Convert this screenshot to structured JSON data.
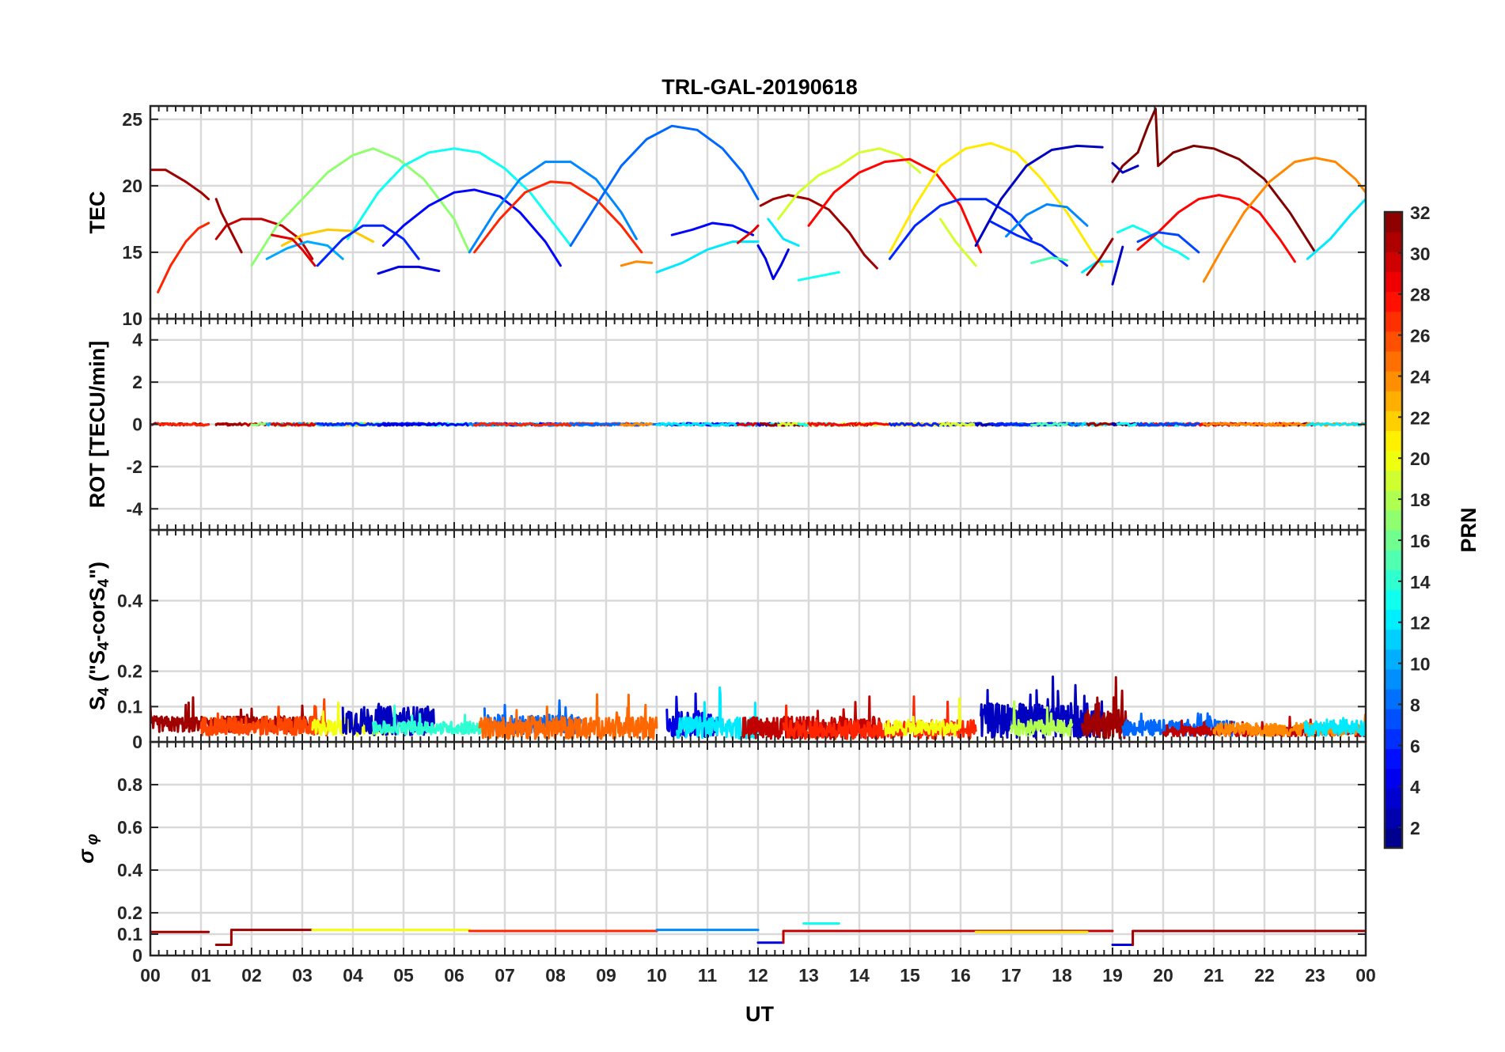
{
  "title": "TRL-GAL-20190618",
  "xlabel": "UT",
  "x_tick_labels": [
    "00",
    "01",
    "02",
    "03",
    "04",
    "05",
    "06",
    "07",
    "08",
    "09",
    "10",
    "11",
    "12",
    "13",
    "14",
    "15",
    "16",
    "17",
    "18",
    "19",
    "20",
    "21",
    "22",
    "23",
    "00"
  ],
  "colorbar": {
    "label": "PRN",
    "range": [
      1,
      32
    ],
    "tick_values": [
      2,
      4,
      6,
      8,
      10,
      12,
      14,
      16,
      18,
      20,
      22,
      24,
      26,
      28,
      30,
      32
    ],
    "tick_labels": [
      "2",
      "4",
      "6",
      "8",
      "10",
      "12",
      "14",
      "16",
      "18",
      "20",
      "22",
      "24",
      "26",
      "28",
      "30",
      "32"
    ],
    "colormap": "jet"
  },
  "panels": [
    {
      "id": "tec",
      "ylabel": "TEC",
      "ylim": [
        10,
        26
      ],
      "y_tick_values": [
        10,
        15,
        20,
        25
      ],
      "y_tick_labels": [
        "10",
        "15",
        "20",
        "25"
      ]
    },
    {
      "id": "rot",
      "ylabel": "ROT [TECU/min]",
      "ylim": [
        -5,
        5
      ],
      "y_tick_values": [
        -4,
        -2,
        0,
        2,
        4
      ],
      "y_tick_labels": [
        "-4",
        "-2",
        "0",
        "2",
        "4"
      ]
    },
    {
      "id": "s4",
      "ylabel": "S",
      "ylabel_sub": "4",
      "ylabel_rest": " (\"S",
      "ylabel_sub2": "4",
      "ylabel_rest2": "-corS",
      "ylabel_sub3": "4",
      "ylabel_end": "\")",
      "ylim": [
        0,
        0.6
      ],
      "y_tick_values": [
        0,
        0.1,
        0.2,
        0.4
      ],
      "y_tick_labels": [
        "0",
        "0.1",
        "0.2",
        "0.4"
      ]
    },
    {
      "id": "sigma",
      "ylabel": "σ",
      "ylabel_sub": "φ",
      "ylim": [
        0,
        1
      ],
      "y_tick_values": [
        0,
        0.1,
        0.2,
        0.4,
        0.6,
        0.8
      ],
      "y_tick_labels": [
        "0",
        "0.1",
        "0.2",
        "0.4",
        "0.6",
        "0.8"
      ]
    }
  ],
  "chart_data": {
    "type": "line",
    "title": "TRL-GAL-20190618",
    "xlabel": "UT",
    "x_unit": "hours",
    "xlim": [
      0,
      24
    ],
    "grid": true,
    "tec_series": [
      {
        "prn": 31,
        "x": [
          0,
          0.3,
          0.7,
          1.0,
          1.15
        ],
        "y": [
          21.2,
          21.2,
          20.3,
          19.5,
          19
        ]
      },
      {
        "prn": 27,
        "x": [
          0.15,
          0.4,
          0.7,
          0.95,
          1.15
        ],
        "y": [
          12,
          14,
          15.8,
          16.8,
          17.2
        ]
      },
      {
        "prn": 30,
        "x": [
          1.3,
          1.5,
          1.8,
          2.2,
          2.6,
          2.95,
          3.2
        ],
        "y": [
          16,
          17,
          17.5,
          17.5,
          17,
          16,
          14.5
        ]
      },
      {
        "prn": 31,
        "x": [
          1.3,
          1.4,
          1.6,
          1.8
        ],
        "y": [
          19,
          18,
          16.5,
          15
        ]
      },
      {
        "prn": 17,
        "x": [
          2.0,
          2.5,
          3.0,
          3.5,
          4.0,
          4.4,
          4.9,
          5.4,
          6.0,
          6.3
        ],
        "y": [
          14,
          17,
          19,
          21,
          22.3,
          22.8,
          22,
          20.5,
          17.5,
          15
        ]
      },
      {
        "prn": 22,
        "x": [
          2.6,
          3.0,
          3.5,
          4.0,
          4.4
        ],
        "y": [
          15.5,
          16.3,
          16.7,
          16.6,
          15.8
        ]
      },
      {
        "prn": 10,
        "x": [
          2.3,
          2.7,
          3.1,
          3.5,
          3.8
        ],
        "y": [
          14.5,
          15.3,
          15.8,
          15.5,
          14.5
        ]
      },
      {
        "prn": 29,
        "x": [
          2.4,
          2.8,
          3.0,
          3.25
        ],
        "y": [
          16.3,
          16.0,
          15.2,
          14.0
        ]
      },
      {
        "prn": 13,
        "x": [
          3.9,
          4.5,
          5.0,
          5.5,
          6.0,
          6.5,
          7.0,
          7.5,
          8.0,
          8.3
        ],
        "y": [
          16,
          19.5,
          21.5,
          22.5,
          22.8,
          22.5,
          21.3,
          19.5,
          17,
          15.5
        ]
      },
      {
        "prn": 6,
        "x": [
          3.3,
          3.8,
          4.2,
          4.6,
          5.0,
          5.3
        ],
        "y": [
          14,
          16,
          17,
          17,
          16,
          14.5
        ]
      },
      {
        "prn": 5,
        "x": [
          4.6,
          5.0,
          5.5,
          6.0,
          6.4,
          6.9,
          7.3,
          7.8,
          8.1
        ],
        "y": [
          15.5,
          17,
          18.5,
          19.5,
          19.7,
          19.2,
          18,
          15.8,
          14
        ]
      },
      {
        "prn": 4,
        "x": [
          4.5,
          4.9,
          5.3,
          5.7
        ],
        "y": [
          13.4,
          13.9,
          13.9,
          13.6
        ]
      },
      {
        "prn": 9,
        "x": [
          6.3,
          6.8,
          7.3,
          7.8,
          8.3,
          8.8,
          9.3,
          9.6
        ],
        "y": [
          15,
          18,
          20.5,
          21.8,
          21.8,
          20.5,
          18,
          16
        ]
      },
      {
        "prn": 27,
        "x": [
          6.4,
          6.9,
          7.4,
          7.9,
          8.3,
          8.8,
          9.3,
          9.7
        ],
        "y": [
          15,
          17.5,
          19.5,
          20.3,
          20.2,
          19,
          17,
          15
        ]
      },
      {
        "prn": 8,
        "x": [
          8.3,
          8.8,
          9.3,
          9.8,
          10.3,
          10.8,
          11.3,
          11.7,
          12.0
        ],
        "y": [
          15.5,
          18.5,
          21.5,
          23.5,
          24.5,
          24.2,
          22.8,
          21,
          19
        ]
      },
      {
        "prn": 24,
        "x": [
          9.3,
          9.6,
          9.9
        ],
        "y": [
          14,
          14.3,
          14.2
        ]
      },
      {
        "prn": 5,
        "x": [
          10.3,
          10.7,
          11.1,
          11.5,
          11.9
        ],
        "y": [
          16.3,
          16.7,
          17.2,
          17,
          16.3
        ]
      },
      {
        "prn": 12,
        "x": [
          10.0,
          10.5,
          11.0,
          11.5,
          12.0
        ],
        "y": [
          13.5,
          14.2,
          15.2,
          15.8,
          15.8
        ]
      },
      {
        "prn": 29,
        "x": [
          11.6,
          11.9,
          12.0
        ],
        "y": [
          15.7,
          16.6,
          17.0
        ]
      },
      {
        "prn": 4,
        "x": [
          12.0,
          12.15,
          12.3,
          12.45,
          12.6
        ],
        "y": [
          15.5,
          14.5,
          13.0,
          14.0,
          15.2
        ]
      },
      {
        "prn": 12,
        "x": [
          12.2,
          12.5,
          12.8
        ],
        "y": [
          17.5,
          16.0,
          15.5
        ]
      },
      {
        "prn": 31,
        "x": [
          12.05,
          12.3,
          12.6,
          13.0,
          13.4,
          13.8,
          14.1,
          14.35
        ],
        "y": [
          18.5,
          19,
          19.3,
          19.0,
          18.2,
          16.5,
          14.8,
          13.8
        ]
      },
      {
        "prn": 19,
        "x": [
          12.4,
          12.8,
          13.2,
          13.6,
          14.0,
          14.4,
          14.8,
          15.2
        ],
        "y": [
          17.5,
          19.5,
          20.8,
          21.5,
          22.5,
          22.8,
          22.3,
          21
        ]
      },
      {
        "prn": 13,
        "x": [
          12.8,
          13.2,
          13.6
        ],
        "y": [
          12.9,
          13.2,
          13.5
        ]
      },
      {
        "prn": 28,
        "x": [
          13.0,
          13.5,
          14.0,
          14.5,
          15.0,
          15.5,
          16.0,
          16.4
        ],
        "y": [
          17,
          19.5,
          21.0,
          21.8,
          22.0,
          21.0,
          18.5,
          15
        ]
      },
      {
        "prn": 21,
        "x": [
          14.6,
          15.1,
          15.6,
          16.1,
          16.6,
          17.1,
          17.6,
          18.1,
          18.6,
          18.8
        ],
        "y": [
          15,
          18.5,
          21.5,
          22.8,
          23.2,
          22.5,
          20.5,
          18,
          15,
          14
        ]
      },
      {
        "prn": 6,
        "x": [
          14.6,
          15.1,
          15.6,
          16.0,
          16.5,
          17.0,
          17.4
        ],
        "y": [
          14.5,
          17,
          18.5,
          19.0,
          19.0,
          17.8,
          16
        ]
      },
      {
        "prn": 19,
        "x": [
          15.6,
          15.9,
          16.3
        ],
        "y": [
          17.5,
          15.8,
          14
        ]
      },
      {
        "prn": 3,
        "x": [
          16.3,
          16.8,
          17.3,
          17.8,
          18.3,
          18.8
        ],
        "y": [
          15.5,
          19,
          21.5,
          22.7,
          23.0,
          22.9
        ]
      },
      {
        "prn": 9,
        "x": [
          16.9,
          17.3,
          17.7,
          18.1,
          18.5
        ],
        "y": [
          16.2,
          17.8,
          18.6,
          18.4,
          17
        ]
      },
      {
        "prn": 6,
        "x": [
          16.6,
          17.1,
          17.6,
          18.1
        ],
        "y": [
          17.3,
          16.3,
          15.5,
          14.0
        ]
      },
      {
        "prn": 15,
        "x": [
          17.4,
          17.8,
          18.1
        ],
        "y": [
          14.2,
          14.6,
          14.4
        ]
      },
      {
        "prn": 12,
        "x": [
          18.4,
          18.7,
          19.0
        ],
        "y": [
          13.5,
          14.3,
          14.3
        ]
      },
      {
        "prn": 31,
        "x": [
          18.5,
          18.75,
          19.0
        ],
        "y": [
          13.3,
          14.5,
          16.0
        ]
      },
      {
        "prn": 3,
        "x": [
          19.0,
          19.1,
          19.2
        ],
        "y": [
          12.6,
          14,
          15.4
        ]
      },
      {
        "prn": 32,
        "x": [
          19.0,
          19.2,
          19.5,
          19.7,
          19.85,
          19.9,
          20.2,
          20.6,
          21.0,
          21.5,
          22.0,
          22.5,
          23.0
        ],
        "y": [
          20.3,
          21.5,
          22.5,
          24.5,
          25.8,
          21.5,
          22.5,
          23.0,
          22.8,
          22.0,
          20.5,
          18.0,
          15.0
        ]
      },
      {
        "prn": 3,
        "x": [
          19.0,
          19.2,
          19.5
        ],
        "y": [
          21.7,
          21.0,
          21.5
        ]
      },
      {
        "prn": 13,
        "x": [
          19.1,
          19.4,
          19.7,
          20.0,
          20.3,
          20.5
        ],
        "y": [
          16.5,
          17,
          16.5,
          15.5,
          15,
          14.5
        ]
      },
      {
        "prn": 28,
        "x": [
          19.5,
          19.9,
          20.3,
          20.7,
          21.1,
          21.5,
          21.9,
          22.3,
          22.6
        ],
        "y": [
          15.2,
          16.5,
          18,
          19,
          19.3,
          19,
          18,
          16,
          14.3
        ]
      },
      {
        "prn": 7,
        "x": [
          19.5,
          19.9,
          20.3,
          20.7
        ],
        "y": [
          15.8,
          16.5,
          16.3,
          15
        ]
      },
      {
        "prn": 24,
        "x": [
          20.8,
          21.2,
          21.6,
          22.1,
          22.6,
          23.0,
          23.4,
          23.8,
          24.0
        ],
        "y": [
          12.8,
          15.5,
          18,
          20.3,
          21.8,
          22.1,
          21.8,
          20.5,
          19.5
        ]
      },
      {
        "prn": 12,
        "x": [
          22.85,
          23.3,
          23.7,
          24.0
        ],
        "y": [
          14.5,
          16,
          17.8,
          19
        ]
      }
    ],
    "rot_value_approx": 0,
    "s4_note_values": {
      "baseline": 0.05,
      "peaks": [
        0.17,
        0.16,
        0.17,
        0.16,
        0.17
      ]
    },
    "s4_bands": [
      {
        "prn": 31,
        "start": 0,
        "end": 3.2,
        "base": 0.05,
        "amp": 0.05
      },
      {
        "prn": 26,
        "start": 1.0,
        "end": 3.5,
        "base": 0.045,
        "amp": 0.06
      },
      {
        "prn": 20,
        "start": 3.2,
        "end": 4.8,
        "base": 0.04,
        "amp": 0.05
      },
      {
        "prn": 3,
        "start": 3.8,
        "end": 5.6,
        "base": 0.06,
        "amp": 0.09
      },
      {
        "prn": 14,
        "start": 4.4,
        "end": 6.6,
        "base": 0.04,
        "amp": 0.04
      },
      {
        "prn": 8,
        "start": 6.6,
        "end": 8.5,
        "base": 0.05,
        "amp": 0.06
      },
      {
        "prn": 25,
        "start": 6.5,
        "end": 10.0,
        "base": 0.04,
        "amp": 0.07
      },
      {
        "prn": 4,
        "start": 10.2,
        "end": 11.2,
        "base": 0.05,
        "amp": 0.08
      },
      {
        "prn": 12,
        "start": 10.4,
        "end": 12.0,
        "base": 0.04,
        "amp": 0.07
      },
      {
        "prn": 30,
        "start": 11.7,
        "end": 14.4,
        "base": 0.04,
        "amp": 0.07
      },
      {
        "prn": 27,
        "start": 12.5,
        "end": 16.3,
        "base": 0.035,
        "amp": 0.06
      },
      {
        "prn": 20,
        "start": 14.5,
        "end": 16.0,
        "base": 0.04,
        "amp": 0.05
      },
      {
        "prn": 3,
        "start": 16.4,
        "end": 18.8,
        "base": 0.06,
        "amp": 0.11
      },
      {
        "prn": 18,
        "start": 17.0,
        "end": 18.2,
        "base": 0.04,
        "amp": 0.05
      },
      {
        "prn": 31,
        "start": 18.4,
        "end": 19.3,
        "base": 0.05,
        "amp": 0.09
      },
      {
        "prn": 8,
        "start": 19.2,
        "end": 21.4,
        "base": 0.04,
        "amp": 0.05
      },
      {
        "prn": 30,
        "start": 20.0,
        "end": 24.0,
        "base": 0.03,
        "amp": 0.03
      },
      {
        "prn": 24,
        "start": 21.0,
        "end": 24.0,
        "base": 0.035,
        "amp": 0.04
      },
      {
        "prn": 12,
        "start": 22.8,
        "end": 24.0,
        "base": 0.04,
        "amp": 0.05
      }
    ],
    "sigma_segments": [
      {
        "prn": 31,
        "x": [
          0,
          1.15
        ],
        "y": [
          0.11,
          0.11
        ]
      },
      {
        "prn": 31,
        "x": [
          1.3,
          1.6,
          1.6,
          3.2
        ],
        "y": [
          0.05,
          0.05,
          0.12,
          0.12
        ]
      },
      {
        "prn": 20,
        "x": [
          3.2,
          6.3
        ],
        "y": [
          0.12,
          0.12
        ]
      },
      {
        "prn": 27,
        "x": [
          6.3,
          10.0
        ],
        "y": [
          0.115,
          0.115
        ]
      },
      {
        "prn": 9,
        "x": [
          10.0,
          12.0
        ],
        "y": [
          0.12,
          0.12
        ]
      },
      {
        "prn": 4,
        "x": [
          12.0,
          12.5
        ],
        "y": [
          0.06,
          0.06
        ]
      },
      {
        "prn": 30,
        "x": [
          12.5,
          12.5,
          19.0
        ],
        "y": [
          0.06,
          0.115,
          0.115
        ]
      },
      {
        "prn": 13,
        "x": [
          12.9,
          13.6
        ],
        "y": [
          0.15,
          0.15
        ]
      },
      {
        "prn": 21,
        "x": [
          16.3,
          18.5
        ],
        "y": [
          0.11,
          0.11
        ]
      },
      {
        "prn": 4,
        "x": [
          19.0,
          19.4
        ],
        "y": [
          0.05,
          0.05
        ]
      },
      {
        "prn": 31,
        "x": [
          19.4,
          19.4,
          24.0
        ],
        "y": [
          0.05,
          0.115,
          0.115
        ]
      }
    ]
  }
}
